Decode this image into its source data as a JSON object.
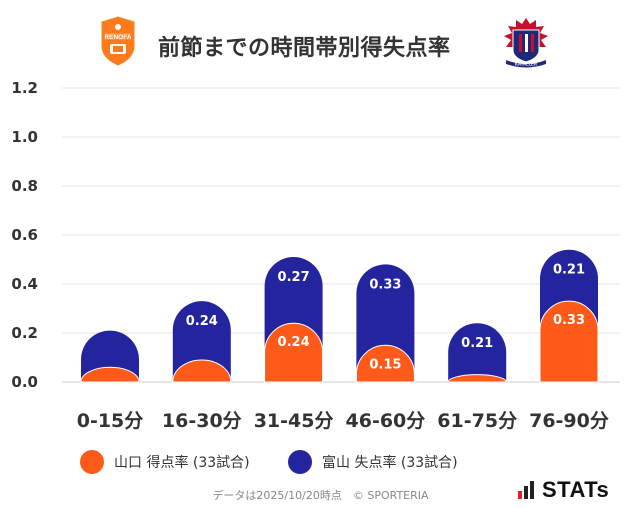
{
  "header": {
    "title": "前節までの時間帯別得失点率",
    "left_logo_text": "RENOFA",
    "right_logo_text": "KATALLER"
  },
  "colors": {
    "yamaguchi": "#ff5a1a",
    "toyama": "#23249e",
    "grid": "#e6e6e6",
    "label_on_bar": "#ffffff"
  },
  "chart_data": {
    "type": "bar",
    "stacked": "overlapping",
    "categories": [
      "0-15分",
      "16-30分",
      "31-45分",
      "46-60分",
      "61-75分",
      "76-90分"
    ],
    "ylim": [
      0,
      1.2
    ],
    "yticks": [
      "0.0",
      "0.2",
      "0.4",
      "0.6",
      "0.8",
      "1.0",
      "1.2"
    ],
    "grid": true,
    "legend_position": "bottom-left",
    "series": [
      {
        "name": "山口 得点率 (33試合)",
        "color": "#ff5a1a",
        "values": [
          0.06,
          0.09,
          0.24,
          0.15,
          0.03,
          0.33
        ],
        "labels": [
          "",
          "",
          "0.24",
          "0.15",
          "",
          "0.33"
        ]
      },
      {
        "name": "富山 失点率 (33試合)",
        "color": "#23249e",
        "values": [
          0.15,
          0.24,
          0.27,
          0.33,
          0.21,
          0.21
        ],
        "labels": [
          "",
          "0.24",
          "0.27",
          "0.33",
          "0.21",
          "0.21"
        ]
      }
    ]
  },
  "legend": {
    "items": [
      {
        "label": "山口 得点率 (33試合)"
      },
      {
        "label": "富山 失点率 (33試合)"
      }
    ]
  },
  "footer": {
    "note": "データは2025/10/20時点　© SPORTERIA",
    "brand": "STATs"
  }
}
